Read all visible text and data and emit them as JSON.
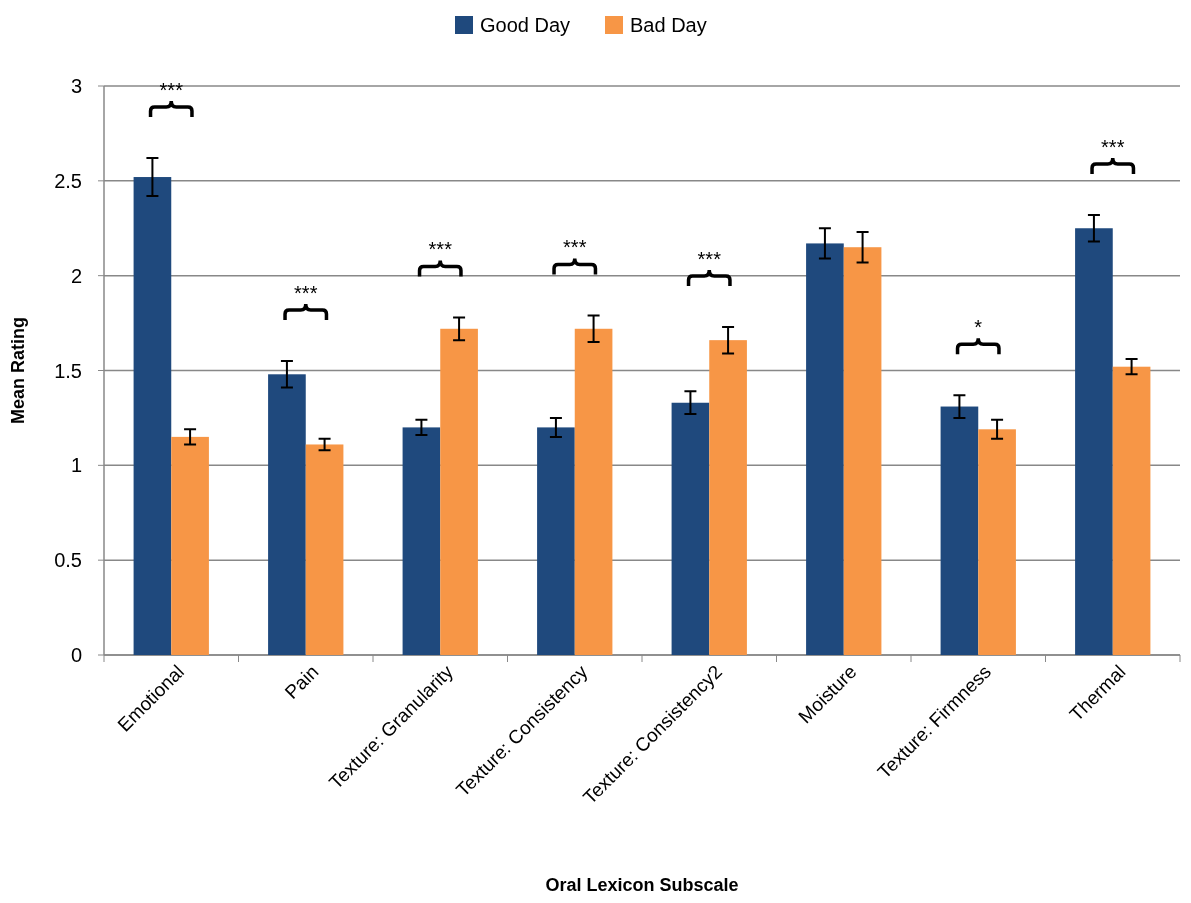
{
  "chart_data": {
    "type": "bar",
    "xlabel": "Oral Lexicon Subscale",
    "ylabel": "Mean Rating",
    "categories": [
      "Emotional",
      "Pain",
      "Texture: Granularity",
      "Texture: Consistency",
      "Texture: Consistency2",
      "Moisture",
      "Texture: Firmness",
      "Thermal"
    ],
    "series": [
      {
        "name": "Good Day",
        "color": "#1f497d",
        "values": [
          2.52,
          1.48,
          1.2,
          1.2,
          1.33,
          2.17,
          1.31,
          2.25
        ],
        "errors": [
          0.1,
          0.07,
          0.04,
          0.05,
          0.06,
          0.08,
          0.06,
          0.07
        ]
      },
      {
        "name": "Bad Day",
        "color": "#f79646",
        "values": [
          1.15,
          1.11,
          1.72,
          1.72,
          1.66,
          2.15,
          1.19,
          1.52
        ],
        "errors": [
          0.04,
          0.03,
          0.06,
          0.07,
          0.07,
          0.08,
          0.05,
          0.04
        ]
      }
    ],
    "ylim": [
      0,
      3
    ],
    "yticks": [
      0,
      0.5,
      1,
      1.5,
      2,
      2.5,
      3
    ],
    "grid": "y",
    "legend": "top",
    "annotations": [
      "***",
      "***",
      "***",
      "***",
      "***",
      "*",
      "***"
    ]
  }
}
